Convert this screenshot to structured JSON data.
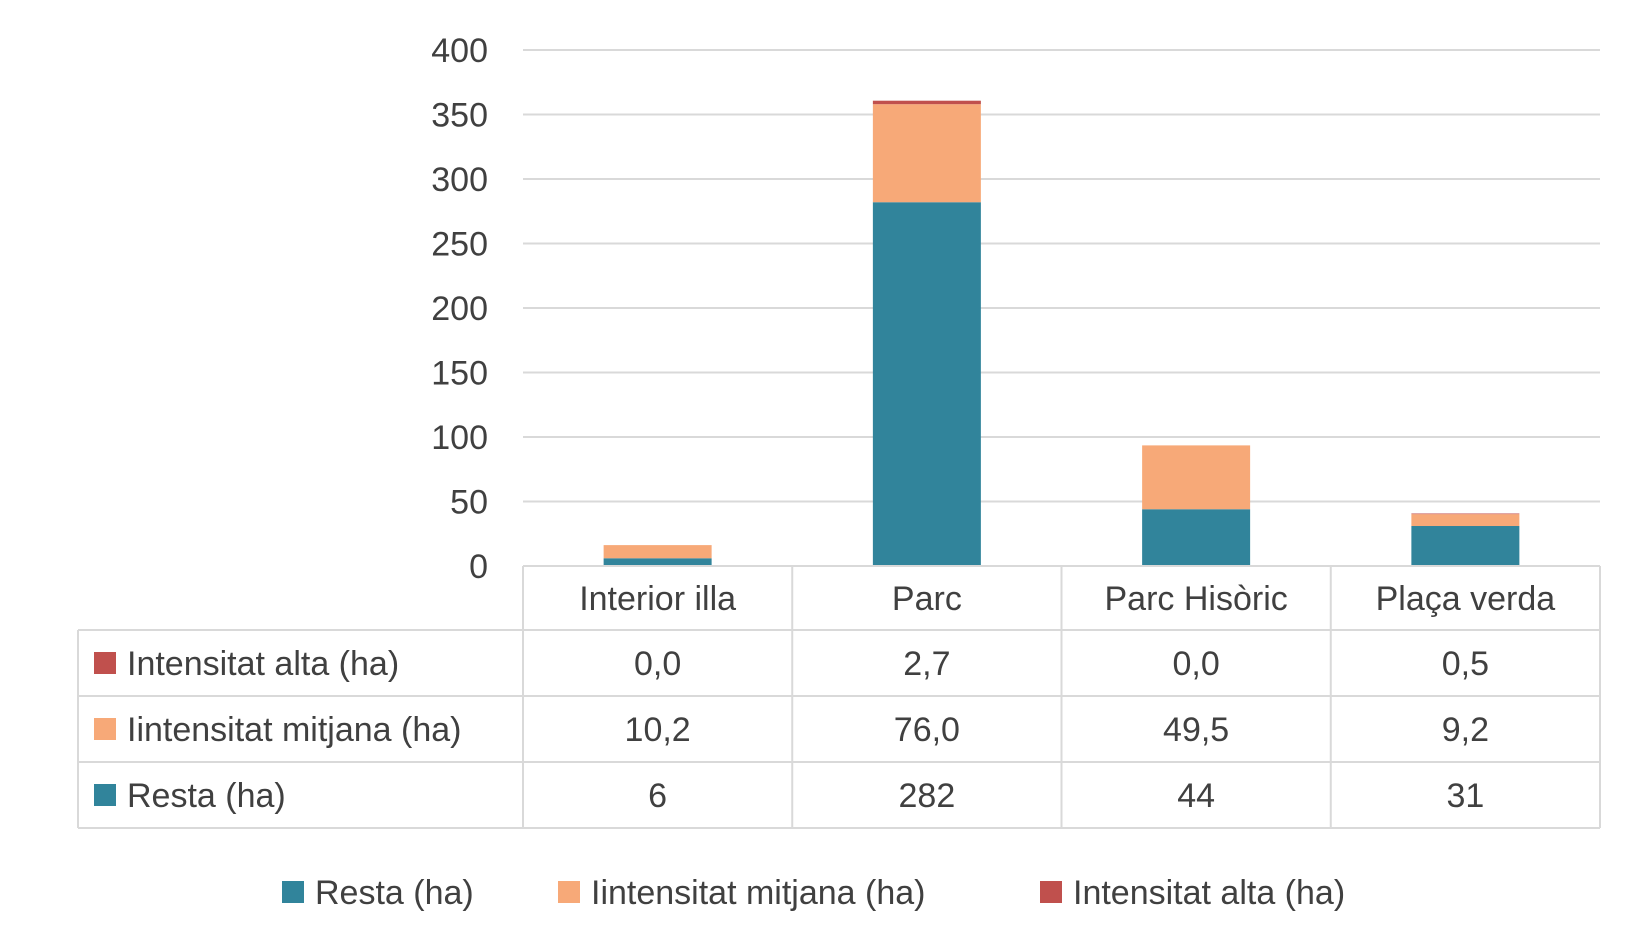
{
  "chart_data": {
    "type": "bar",
    "stacked": true,
    "title": "",
    "xlabel": "",
    "ylabel": "",
    "ylim": [
      0,
      400
    ],
    "yticks": [
      0,
      50,
      100,
      150,
      200,
      250,
      300,
      350,
      400
    ],
    "grid": true,
    "legend_position": "bottom",
    "categories": [
      "Interior illa",
      "Parc",
      "Parc Hisòric",
      "Plaça verda"
    ],
    "series": [
      {
        "name": "Resta  (ha)",
        "color": "#31849B",
        "values": [
          6,
          282,
          44,
          31
        ],
        "labels": [
          "6",
          "282",
          "44",
          "31"
        ]
      },
      {
        "name": "Iintensitat mitjana (ha)",
        "color": "#F7A978",
        "values": [
          10.2,
          76.0,
          49.5,
          9.2
        ],
        "labels": [
          "10,2",
          "76,0",
          "49,5",
          "9,2"
        ]
      },
      {
        "name": "Intensitat alta (ha)",
        "color": "#C0504D",
        "values": [
          0.0,
          2.7,
          0.0,
          0.5
        ],
        "labels": [
          "0,0",
          "2,7",
          "0,0",
          "0,5"
        ]
      }
    ],
    "data_table": {
      "row_order": [
        2,
        1,
        0
      ]
    }
  }
}
